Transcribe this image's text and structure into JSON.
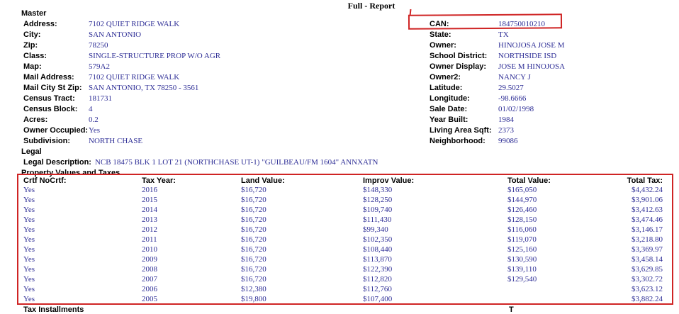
{
  "title": "Full - Report",
  "colors": {
    "annotation_red": "#cf2424",
    "value_navy": "#2e2e96"
  },
  "sections": {
    "master": "Master",
    "legal": "Legal",
    "values_taxes": "Property Values and Taxes"
  },
  "left_fields": [
    {
      "label": "Address:",
      "value": "7102 QUIET RIDGE WALK"
    },
    {
      "label": "City:",
      "value": "SAN ANTONIO"
    },
    {
      "label": "Zip:",
      "value": "78250"
    },
    {
      "label": "Class:",
      "value": "SINGLE-STRUCTURE PROP W/O AGR"
    },
    {
      "label": "Map:",
      "value": "579A2"
    },
    {
      "label": "Mail Address:",
      "value": "7102 QUIET RIDGE WALK"
    },
    {
      "label": "Mail City St Zip:",
      "value": "SAN ANTONIO, TX 78250 - 3561"
    },
    {
      "label": "Census Tract:",
      "value": "181731"
    },
    {
      "label": "Census Block:",
      "value": "4"
    },
    {
      "label": "Acres:",
      "value": "0.2"
    },
    {
      "label": "Owner Occupied:",
      "value": "Yes"
    },
    {
      "label": "Subdivision:",
      "value": "NORTH CHASE"
    }
  ],
  "legal_description": {
    "label": "Legal Description:",
    "value": "NCB 18475 BLK 1 LOT 21 (NORTHCHASE UT-1) \"GUILBEAU/FM 1604\" ANNXATN"
  },
  "right_fields": [
    {
      "label": "CAN:",
      "value": "184750010210"
    },
    {
      "label": "State:",
      "value": "TX"
    },
    {
      "label": "Owner:",
      "value": "HINOJOSA JOSE M"
    },
    {
      "label": "School District:",
      "value": "NORTHSIDE ISD"
    },
    {
      "label": "Owner Display:",
      "value": "JOSE M HINOJOSA"
    },
    {
      "label": "Owner2:",
      "value": "NANCY J"
    },
    {
      "label": "Latitude:",
      "value": "29.5027"
    },
    {
      "label": "Longitude:",
      "value": "-98.6666"
    },
    {
      "label": "Sale Date:",
      "value": "01/02/1998"
    },
    {
      "label": "Year Built:",
      "value": "1984"
    },
    {
      "label": "Living Area Sqft:",
      "value": "2373"
    },
    {
      "label": "Neighborhood:",
      "value": "99086"
    }
  ],
  "tax_table": {
    "headers": [
      "Crtf NoCrtf:",
      "Tax Year:",
      "Land Value:",
      "Improv Value:",
      "Total Value:",
      "Total Tax:"
    ],
    "rows": [
      [
        "Yes",
        "2016",
        "$16,720",
        "$148,330",
        "$165,050",
        "$4,432.24"
      ],
      [
        "Yes",
        "2015",
        "$16,720",
        "$128,250",
        "$144,970",
        "$3,901.06"
      ],
      [
        "Yes",
        "2014",
        "$16,720",
        "$109,740",
        "$126,460",
        "$3,412.63"
      ],
      [
        "Yes",
        "2013",
        "$16,720",
        "$111,430",
        "$128,150",
        "$3,474.46"
      ],
      [
        "Yes",
        "2012",
        "$16,720",
        "$99,340",
        "$116,060",
        "$3,146.17"
      ],
      [
        "Yes",
        "2011",
        "$16,720",
        "$102,350",
        "$119,070",
        "$3,218.80"
      ],
      [
        "Yes",
        "2010",
        "$16,720",
        "$108,440",
        "$125,160",
        "$3,369.97"
      ],
      [
        "Yes",
        "2009",
        "$16,720",
        "$113,870",
        "$130,590",
        "$3,458.14"
      ],
      [
        "Yes",
        "2008",
        "$16,720",
        "$122,390",
        "$139,110",
        "$3,629.85"
      ],
      [
        "Yes",
        "2007",
        "$16,720",
        "$112,820",
        "$129,540",
        "$3,302.72"
      ],
      [
        "Yes",
        "2006",
        "$12,380",
        "$112,760",
        "",
        "$3,623.12"
      ],
      [
        "Yes",
        "2005",
        "$19,800",
        "$107,400",
        "",
        "$3,882.24"
      ]
    ]
  },
  "bottom_cutoff": {
    "left": "Tax Installments",
    "right": "T"
  }
}
